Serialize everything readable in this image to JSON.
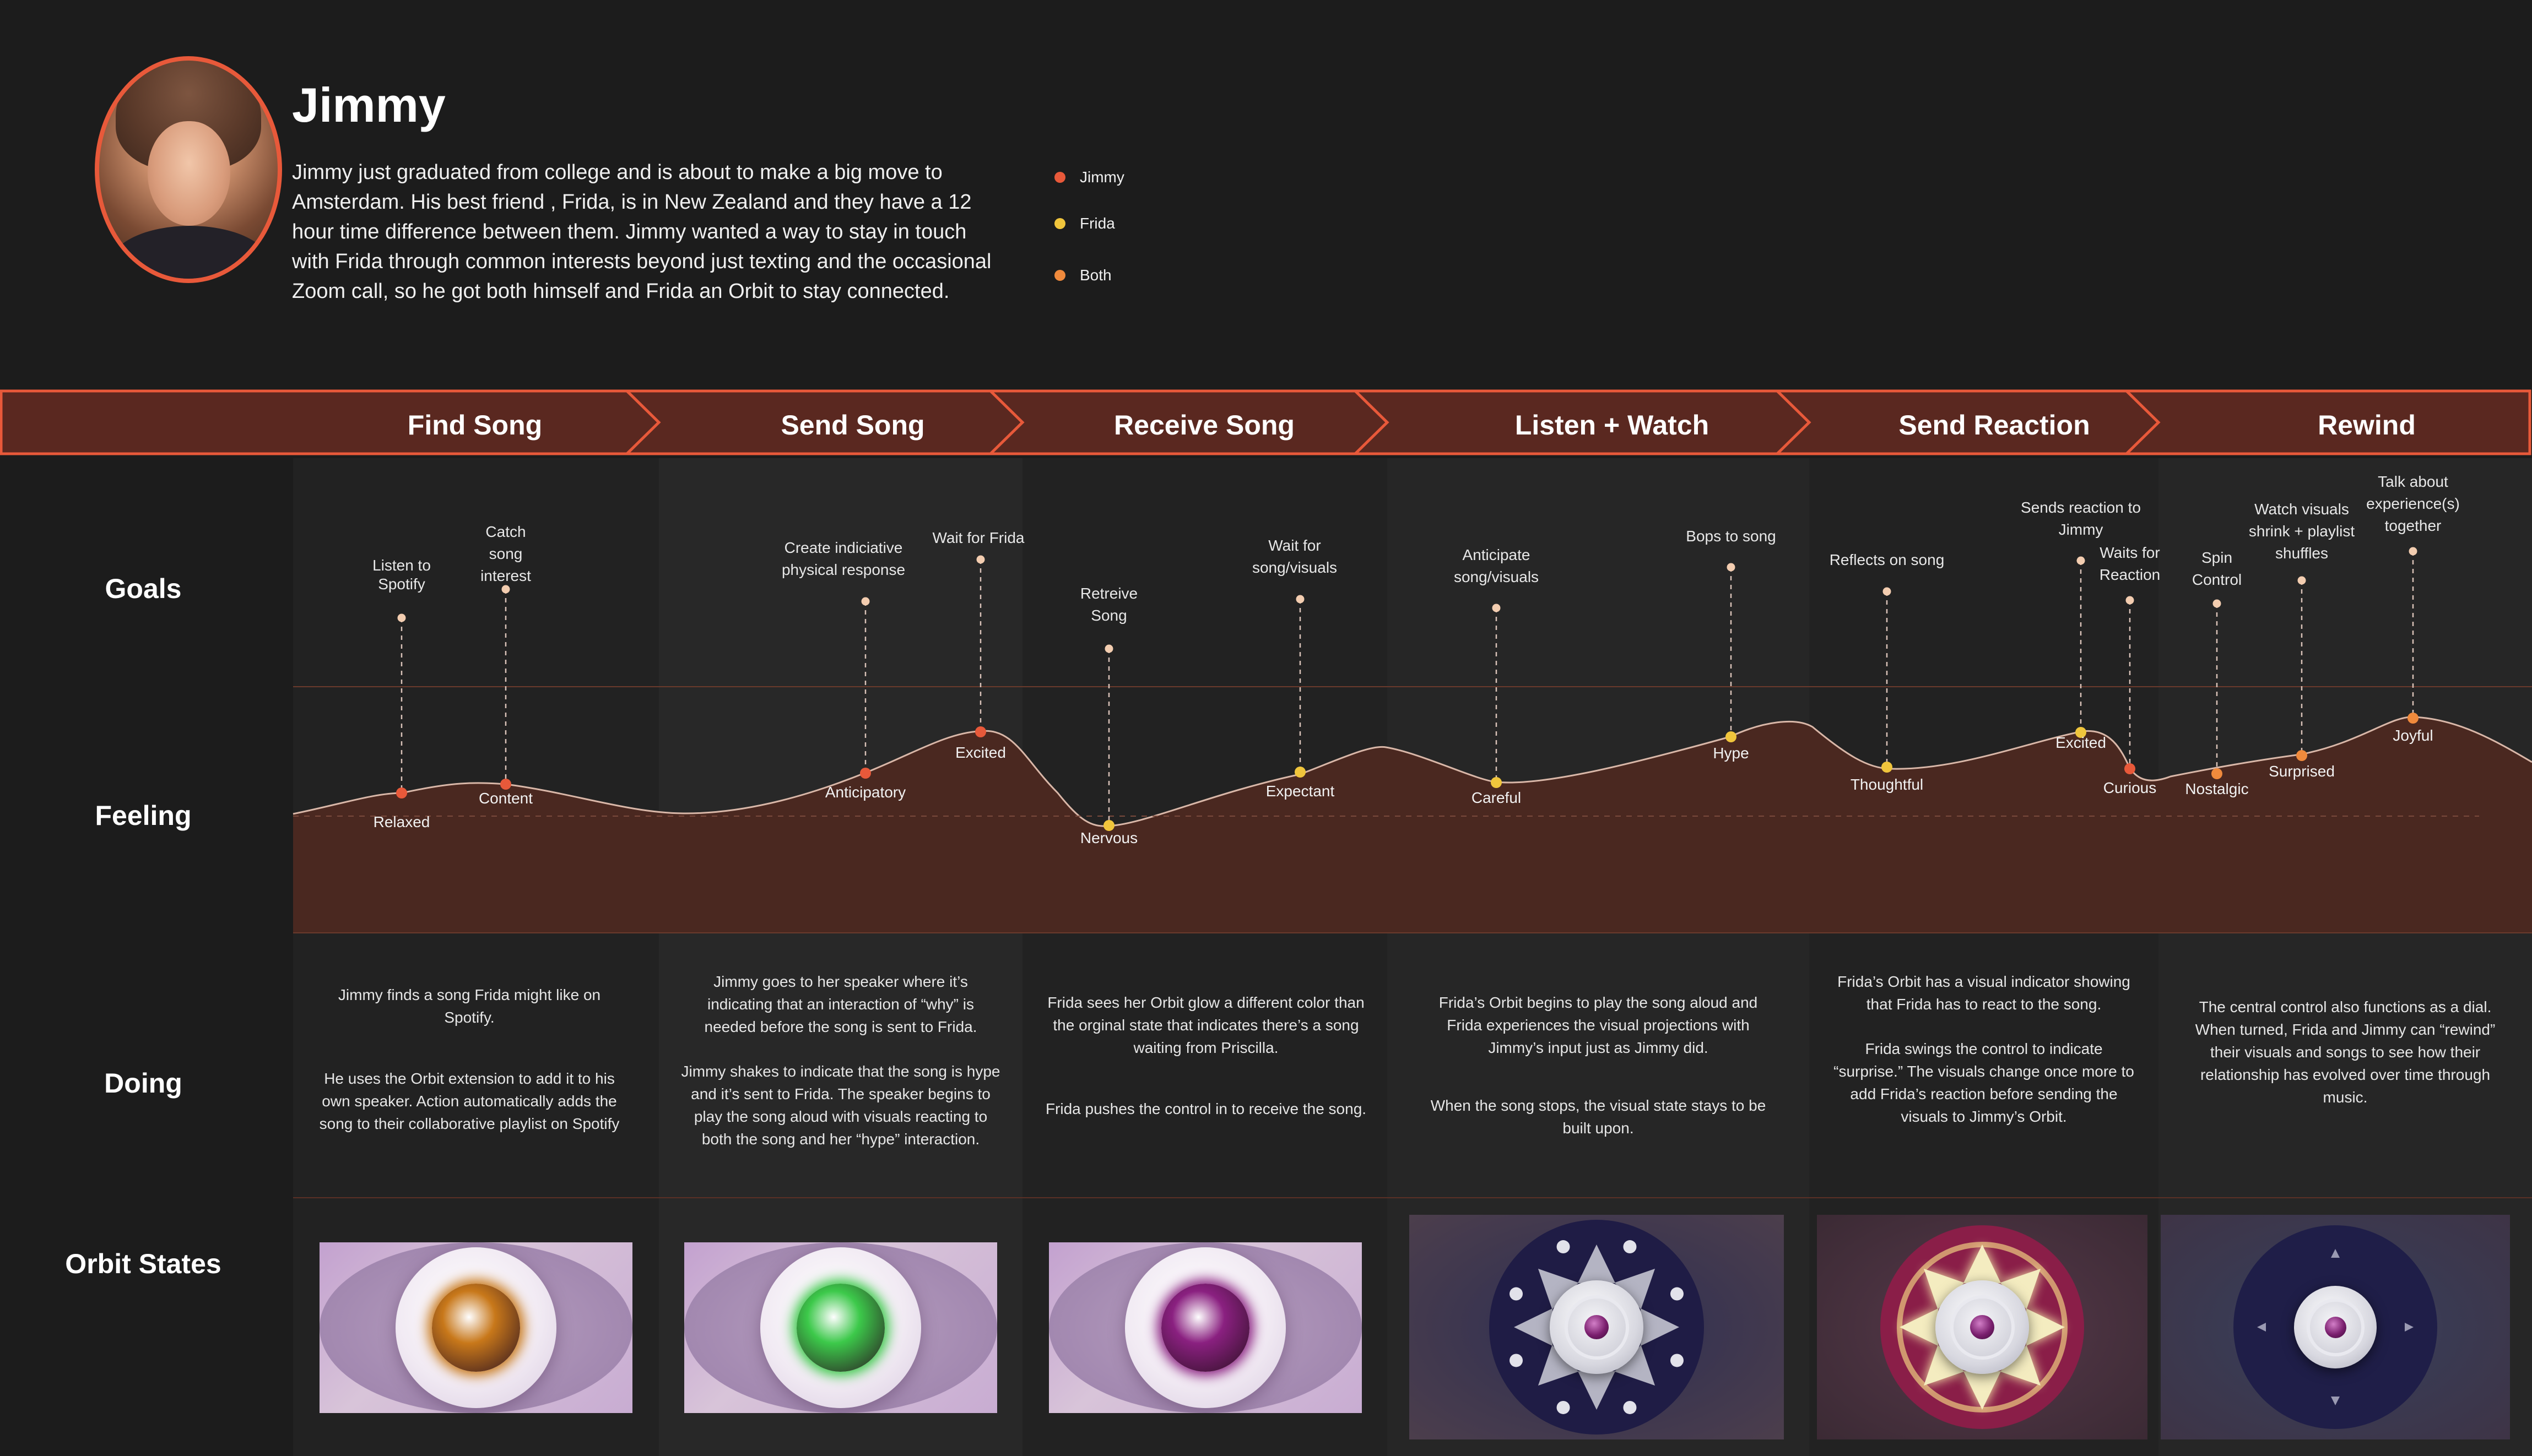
{
  "persona": {
    "name": "Jimmy",
    "description": "Jimmy just graduated from college and is about to make a big move to Amsterdam. His best friend , Frida, is in New Zealand and they have a 12 hour time difference between them. Jimmy wanted a way to stay in touch with Frida through common interests beyond just texting and the occasional Zoom call, so he got both himself and Frida an Orbit to stay connected."
  },
  "legend": [
    {
      "label": "Jimmy",
      "color": "#e8593a"
    },
    {
      "label": "Frida",
      "color": "#f0c53c"
    },
    {
      "label": "Both",
      "color": "#f08a3c"
    }
  ],
  "stages": [
    "Find Song",
    "Send Song",
    "Receive Song",
    "Listen + Watch",
    "Send Reaction",
    "Rewind"
  ],
  "rows": {
    "goals": "Goals",
    "feeling": "Feeling",
    "doing": "Doing",
    "orbit_states": "Orbit States"
  },
  "points": [
    {
      "goal": "Listen to Spotify",
      "feeling": "Relaxed",
      "owner": "Jimmy"
    },
    {
      "goal": "Catch song interest",
      "feeling": "Content",
      "owner": "Jimmy"
    },
    {
      "goal": "Create indiciative physical response",
      "feeling": "Anticipatory",
      "owner": "Jimmy"
    },
    {
      "goal": "Wait for Frida",
      "feeling": "Excited",
      "owner": "Jimmy"
    },
    {
      "goal": "Retreive Song",
      "feeling": "Nervous",
      "owner": "Frida"
    },
    {
      "goal": "Wait for song/visuals",
      "feeling": "Expectant",
      "owner": "Frida"
    },
    {
      "goal": "Anticipate song/visuals",
      "feeling": "Careful",
      "owner": "Frida"
    },
    {
      "goal": "Bops to song",
      "feeling": "Hype",
      "owner": "Frida"
    },
    {
      "goal": "Reflects on song",
      "feeling": "Thoughtful",
      "owner": "Frida"
    },
    {
      "goal": "Sends reaction to Jimmy",
      "feeling": "Excited",
      "owner": "Frida"
    },
    {
      "goal": "Waits for Reaction",
      "feeling": "Curious",
      "owner": "Jimmy"
    },
    {
      "goal": "Spin Control",
      "feeling": "Nostalgic",
      "owner": "Both"
    },
    {
      "goal": "Watch visuals shrink + playlist shuffles",
      "feeling": "Surprised",
      "owner": "Both"
    },
    {
      "goal": "Talk about experience(s) together",
      "feeling": "Joyful",
      "owner": "Both"
    }
  ],
  "doing": [
    [
      "Jimmy finds a song Frida might like on Spotify.",
      "He uses the Orbit extension to add it to his own speaker. Action automatically adds the song to their collaborative playlist on Spotify"
    ],
    [
      "Jimmy goes to her speaker where it’s indicating that an interaction of “why” is needed before the song is sent to Frida.",
      "Jimmy shakes to indicate that the song is hype and it’s sent to Frida. The speaker begins to play the song aloud with visuals reacting to both the song and her “hype” interaction."
    ],
    [
      "Frida sees her Orbit glow a different color than the orginal state that indicates there’s a song waiting from Priscilla.",
      "Frida pushes the control in to receive the song."
    ],
    [
      "Frida’s Orbit begins to play the song aloud and Frida experiences the visual projections with Jimmy’s input just as Jimmy did.",
      "When the song stops, the visual state stays to be built upon."
    ],
    [
      "Frida’s Orbit has a visual indicator showing that Frida has to react to the song.",
      "Frida swings the control to indicate “surprise.” The visuals change once more to add Frida’s reaction before sending the visuals to Jimmy’s Orbit."
    ],
    [
      "The central control also functions as a dial. When turned, Frida and Jimmy can “rewind” their visuals and songs to see how their relationship has evolved over time through music."
    ]
  ],
  "orbit_states": [
    {
      "state": "orange-glow",
      "orb_color": "#c8781a"
    },
    {
      "state": "green-glow",
      "orb_color": "#3cc94a"
    },
    {
      "state": "purple-glow",
      "orb_color": "#8a2080"
    },
    {
      "state": "dial-arrows",
      "orb_color": "#2a2350"
    },
    {
      "state": "dial-glowing",
      "orb_color": "#c8b84a"
    },
    {
      "state": "dial-minimal",
      "orb_color": "#2a2350"
    }
  ],
  "colors": {
    "background": "#1c1c1c",
    "column_alt": "#222222",
    "banner_fill": "#5a2820",
    "banner_stroke": "#e8593a",
    "curve_fill": "#4a2820",
    "accent": "#e8593a"
  }
}
